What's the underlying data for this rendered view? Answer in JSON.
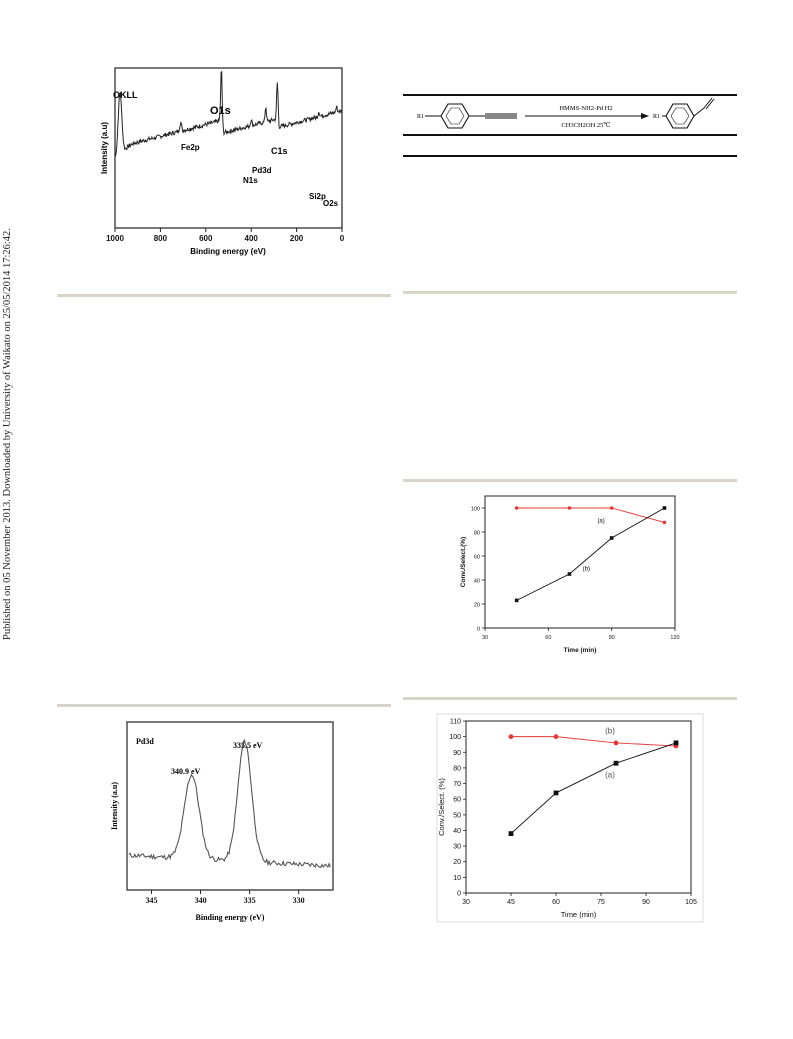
{
  "side_note": "Published on 05 November 2013. Downloaded by University of Waikato on 25/05/2014 17:26:42.",
  "xps_survey": {
    "xlabel": "Binding energy (eV)",
    "ylabel": "Intensity (a.u)",
    "xticks": [
      "1000",
      "800",
      "600",
      "400",
      "200",
      "0"
    ],
    "peaks": [
      "OKLL",
      "O1s",
      "Fe2p",
      "C1s",
      "Pd3d",
      "N1s",
      "Si2p",
      "O2s"
    ]
  },
  "scheme": {
    "r1": "R1",
    "r1_sub": "1",
    "reagent_top": "HMMS-NH2-Pd   H2",
    "reagent_bottom": "CH3CH2OH    25℃",
    "r1_product": "R1"
  },
  "chart_data": [
    {
      "type": "line",
      "title": "",
      "xlabel": "Time (min)",
      "ylabel": "Conv./Select.(%)",
      "xlim": [
        30,
        120
      ],
      "ylim": [
        0,
        110
      ],
      "xticks": [
        30,
        60,
        90,
        120
      ],
      "yticks": [
        0,
        20,
        40,
        60,
        80,
        100
      ],
      "grid": false,
      "series": [
        {
          "name": "(a)",
          "color": "#e53935",
          "marker": "circle",
          "x": [
            45,
            70,
            90,
            115
          ],
          "y": [
            100,
            100,
            100,
            88
          ]
        },
        {
          "name": "(b)",
          "color": "#111111",
          "marker": "square",
          "x": [
            45,
            70,
            90,
            115
          ],
          "y": [
            23,
            45,
            75,
            100
          ]
        }
      ]
    },
    {
      "type": "line",
      "title": "",
      "xlabel": "Time (min)",
      "ylabel": "Conv./Select. (%)",
      "xlim": [
        30,
        105
      ],
      "ylim": [
        0,
        110
      ],
      "xticks": [
        30,
        45,
        60,
        75,
        90,
        105
      ],
      "yticks": [
        0,
        10,
        20,
        30,
        40,
        50,
        60,
        70,
        80,
        90,
        100,
        110
      ],
      "grid": false,
      "series": [
        {
          "name": "(b)",
          "color": "#e53935",
          "marker": "circle",
          "x": [
            45,
            60,
            80,
            100
          ],
          "y": [
            100,
            100,
            96,
            94
          ]
        },
        {
          "name": "(a)",
          "color": "#111111",
          "marker": "square",
          "x": [
            45,
            60,
            80,
            100
          ],
          "y": [
            38,
            64,
            83,
            96
          ]
        }
      ]
    }
  ],
  "xps_pd": {
    "panel_label": "Pd3d",
    "peak1": "340.9 eV",
    "peak2": "335.5 eV",
    "xlabel": "Binding energy (eV)",
    "ylabel": "Intensity (a.u)",
    "xticks": [
      "345",
      "340",
      "335",
      "330"
    ]
  }
}
